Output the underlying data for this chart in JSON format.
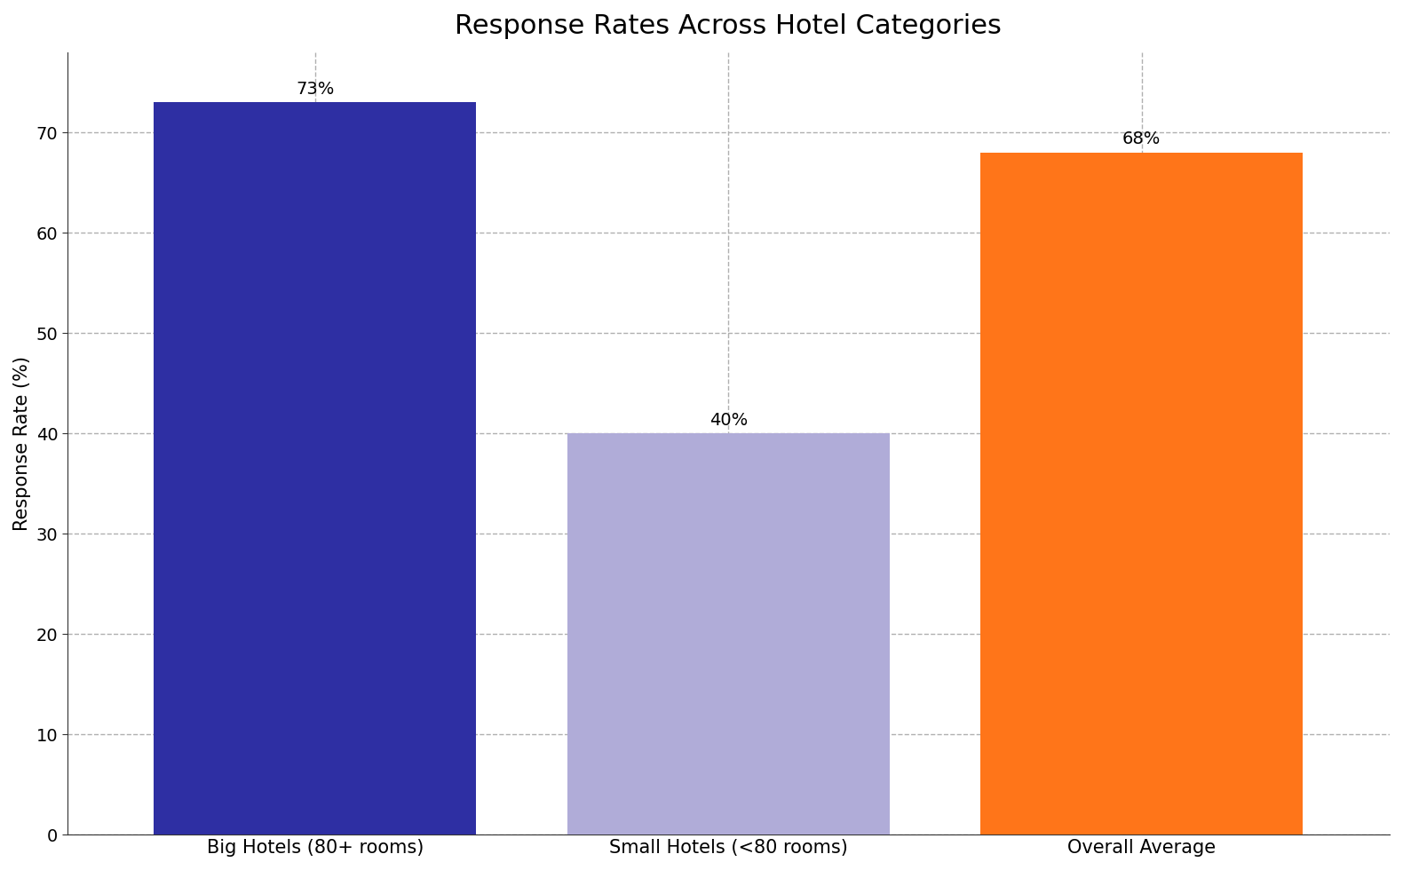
{
  "title": "Response Rates Across Hotel Categories",
  "categories": [
    "Big Hotels (80+ rooms)",
    "Small Hotels (<80 rooms)",
    "Overall Average"
  ],
  "values": [
    73,
    40,
    68
  ],
  "bar_colors": [
    "#2e2fa3",
    "#b0acd8",
    "#ff7519"
  ],
  "bar_labels": [
    "73%",
    "40%",
    "68%"
  ],
  "ylabel": "Response Rate (%)",
  "ylim": [
    0,
    78
  ],
  "yticks": [
    0,
    10,
    20,
    30,
    40,
    50,
    60,
    70
  ],
  "grid_color": "#b0b0b0",
  "grid_linestyle": "--",
  "background_color": "#ffffff",
  "title_fontsize": 22,
  "label_fontsize": 15,
  "tick_fontsize": 14,
  "annot_fontsize": 14,
  "bar_width": 0.78
}
